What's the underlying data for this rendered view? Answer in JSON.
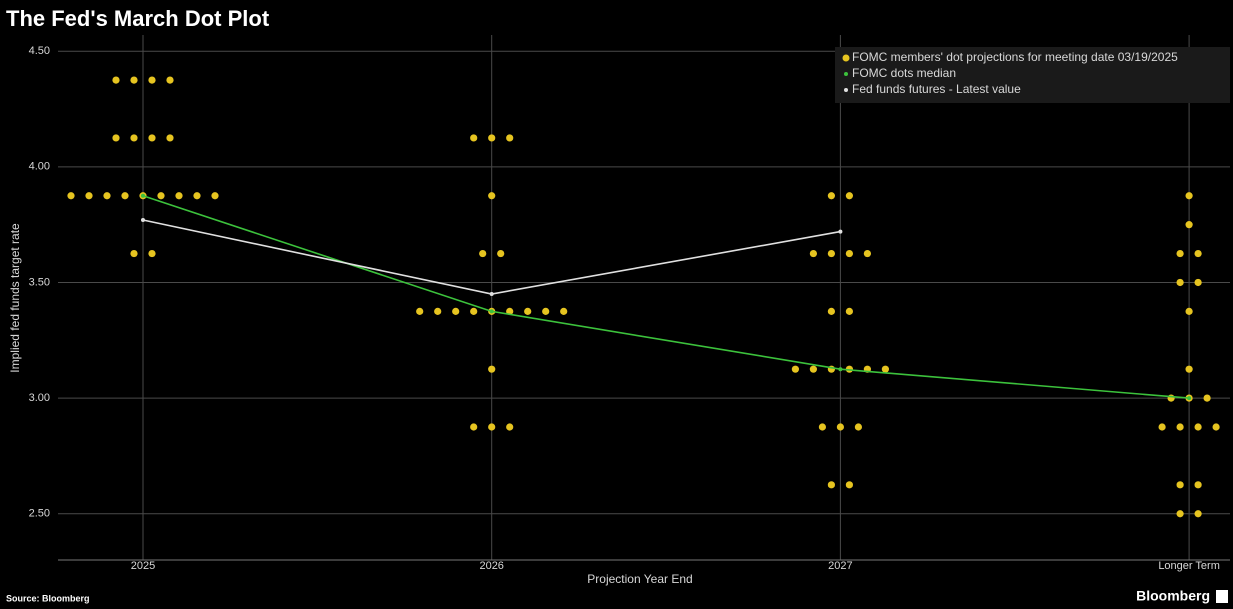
{
  "chart_data": {
    "type": "dot-plot",
    "title": "The Fed's March Dot Plot",
    "x_label": "Projection Year End",
    "y_label": "Implied fed funds target rate",
    "source": "Source: Bloomberg",
    "brand": "Bloomberg",
    "categories": [
      "2025",
      "2026",
      "2027",
      "Longer Term"
    ],
    "ylim": [
      2.3,
      4.57
    ],
    "yticks": [
      {
        "value": 2.5,
        "label": "2.50"
      },
      {
        "value": 3,
        "label": "3.00"
      },
      {
        "value": 3.5,
        "label": "3.50"
      },
      {
        "value": 4,
        "label": "4.00"
      },
      {
        "value": 4.5,
        "label": "4.50"
      }
    ],
    "grid": true,
    "legend": "top-right",
    "series": [
      {
        "name": "FOMC members' dot projections for meeting date 03/19/2025",
        "color": "#e6c420",
        "values": [
          [
            4.375,
            4.375,
            4.375,
            4.375,
            4.125,
            4.125,
            4.125,
            4.125,
            3.875,
            3.875,
            3.875,
            3.875,
            3.875,
            3.875,
            3.875,
            3.875,
            3.875,
            3.625,
            3.625
          ],
          [
            4.125,
            4.125,
            4.125,
            3.875,
            3.625,
            3.625,
            3.375,
            3.375,
            3.375,
            3.375,
            3.375,
            3.375,
            3.375,
            3.375,
            3.375,
            3.125,
            2.875,
            2.875,
            2.875
          ],
          [
            3.875,
            3.875,
            3.625,
            3.625,
            3.625,
            3.625,
            3.375,
            3.375,
            3.125,
            3.125,
            3.125,
            3.125,
            3.125,
            3.125,
            2.875,
            2.875,
            2.875,
            2.625,
            2.625
          ],
          [
            3.875,
            3.75,
            3.625,
            3.625,
            3.5,
            3.5,
            3.375,
            3.125,
            3,
            3,
            3,
            2.875,
            2.875,
            2.875,
            2.875,
            2.625,
            2.625,
            2.5,
            2.5
          ]
        ]
      },
      {
        "name": "FOMC dots median",
        "color": "#3cc23c",
        "values": [
          3.875,
          3.375,
          3.125,
          3
        ]
      },
      {
        "name": "Fed funds futures - Latest value",
        "color": "#e0e0e0",
        "values": [
          3.77,
          3.45,
          3.72,
          null
        ]
      }
    ]
  }
}
